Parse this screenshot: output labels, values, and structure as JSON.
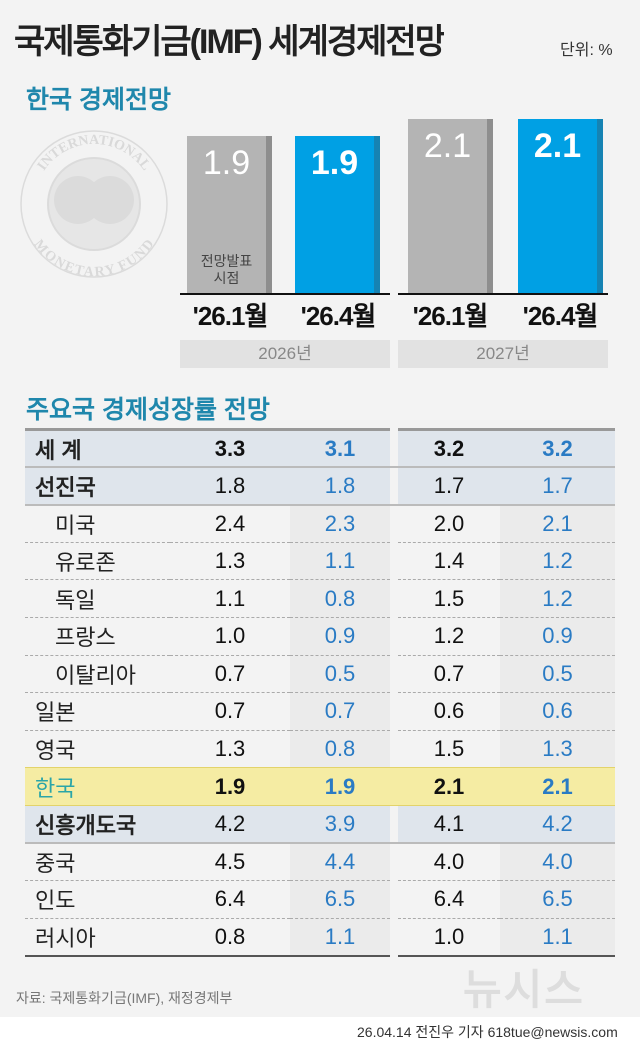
{
  "header": {
    "title": "국제통화기금(IMF) 세계경제전망",
    "unit": "단위: %"
  },
  "section1": {
    "title": "한국 경제전망"
  },
  "logo": {
    "text_top": "INTERNATIONAL",
    "text_bottom": "MONETARY FUND"
  },
  "chart_data": {
    "type": "bar",
    "title": "한국 경제전망",
    "categories": [
      "'26.1월",
      "'26.4월",
      "'26.1월",
      "'26.4월"
    ],
    "groups": [
      "2026년",
      "2027년"
    ],
    "values": [
      1.9,
      1.9,
      2.1,
      2.1
    ],
    "value_labels": [
      "1.9",
      "1.9",
      "2.1",
      "2.1"
    ],
    "colors": [
      "#b4b4b4",
      "#00a0e4",
      "#b4b4b4",
      "#00a0e4"
    ],
    "annotation": "전망발표\n시점",
    "annotation_lines": [
      "전망발표",
      "시점"
    ]
  },
  "section2": {
    "title": "주요국 경제성장률 전망"
  },
  "table": {
    "rows": [
      {
        "label": "세  계",
        "v": [
          "3.3",
          "3.1",
          "3.2",
          "3.2"
        ]
      },
      {
        "label": "선진국",
        "v": [
          "1.8",
          "1.8",
          "1.7",
          "1.7"
        ]
      },
      {
        "label": "미국",
        "v": [
          "2.4",
          "2.3",
          "2.0",
          "2.1"
        ]
      },
      {
        "label": "유로존",
        "v": [
          "1.3",
          "1.1",
          "1.4",
          "1.2"
        ]
      },
      {
        "label": "독일",
        "v": [
          "1.1",
          "0.8",
          "1.5",
          "1.2"
        ]
      },
      {
        "label": "프랑스",
        "v": [
          "1.0",
          "0.9",
          "1.2",
          "0.9"
        ]
      },
      {
        "label": "이탈리아",
        "v": [
          "0.7",
          "0.5",
          "0.7",
          "0.5"
        ]
      },
      {
        "label": "일본",
        "v": [
          "0.7",
          "0.7",
          "0.6",
          "0.6"
        ]
      },
      {
        "label": "영국",
        "v": [
          "1.3",
          "0.8",
          "1.5",
          "1.3"
        ]
      },
      {
        "label": "한국",
        "v": [
          "1.9",
          "1.9",
          "2.1",
          "2.1"
        ]
      },
      {
        "label": "신흥개도국",
        "v": [
          "4.2",
          "3.9",
          "4.1",
          "4.2"
        ]
      },
      {
        "label": "중국",
        "v": [
          "4.5",
          "4.4",
          "4.0",
          "4.0"
        ]
      },
      {
        "label": "인도",
        "v": [
          "6.4",
          "6.5",
          "6.4",
          "6.5"
        ]
      },
      {
        "label": "러시아",
        "v": [
          "0.8",
          "1.1",
          "1.0",
          "1.1"
        ]
      }
    ]
  },
  "footer": {
    "source": "자료: 국제통화기금(IMF), 재정경제부",
    "credit": "26.04.14 전진우 기자 618tue@newsis.com",
    "watermark": "뉴시스"
  }
}
